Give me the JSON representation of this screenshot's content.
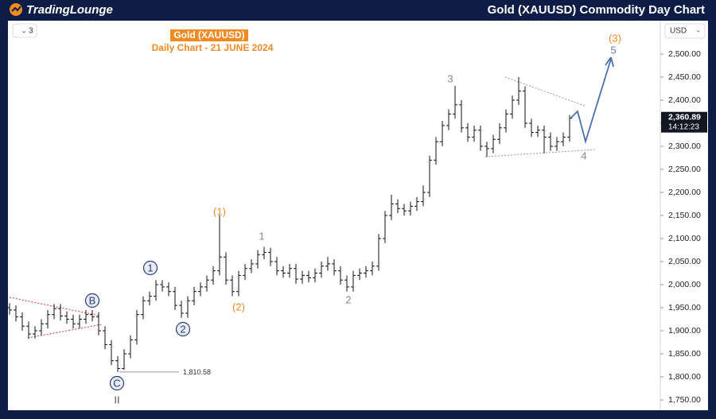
{
  "header": {
    "brand": "TradingLounge",
    "title": "Gold (XAUUSD) Commodity Day Chart"
  },
  "chart_data": {
    "type": "ohlc",
    "title": "Gold (XAUUSD)",
    "subtitle": "Daily Chart - 21 JUNE 2024",
    "currency": "USD",
    "interval": "3",
    "color": "#111111",
    "open": [
      1950,
      1945,
      1930,
      1910,
      1893,
      1900,
      1915,
      1935,
      1948,
      1932,
      1925,
      1915,
      1925,
      1935,
      1930,
      1900,
      1870,
      1835,
      1818,
      1850,
      1880,
      1935,
      1965,
      1975,
      2000,
      1995,
      1985,
      1955,
      1938,
      1965,
      1985,
      1995,
      2010,
      2030,
      2060,
      2010,
      1985,
      2020,
      2035,
      2045,
      2065,
      2070,
      2050,
      2030,
      2025,
      2035,
      2012,
      2020,
      2015,
      2025,
      2040,
      2045,
      2030,
      2010,
      1995,
      2020,
      2025,
      2030,
      2040,
      2100,
      2150,
      2175,
      2165,
      2160,
      2170,
      2180,
      2200,
      2270,
      2310,
      2345,
      2370,
      2390,
      2340,
      2320,
      2335,
      2300,
      2295,
      2315,
      2340,
      2370,
      2400,
      2420,
      2350,
      2330,
      2335,
      2320,
      2300,
      2310,
      2320
    ],
    "high": [
      1960,
      1955,
      1940,
      1920,
      1910,
      1925,
      1945,
      1958,
      1958,
      1942,
      1935,
      1935,
      1945,
      1945,
      1940,
      1910,
      1880,
      1845,
      1860,
      1890,
      1945,
      1975,
      1985,
      2010,
      2010,
      2005,
      1995,
      1965,
      1975,
      1995,
      2005,
      2020,
      2040,
      2150,
      2070,
      2020,
      2030,
      2045,
      2055,
      2075,
      2082,
      2080,
      2060,
      2040,
      2045,
      2045,
      2030,
      2030,
      2035,
      2050,
      2060,
      2055,
      2040,
      2020,
      2030,
      2035,
      2040,
      2050,
      2110,
      2160,
      2195,
      2185,
      2175,
      2180,
      2190,
      2215,
      2280,
      2320,
      2355,
      2380,
      2431,
      2400,
      2350,
      2345,
      2345,
      2310,
      2325,
      2350,
      2380,
      2410,
      2450,
      2430,
      2360,
      2345,
      2345,
      2330,
      2320,
      2330,
      2368
    ],
    "low": [
      1935,
      1920,
      1900,
      1883,
      1883,
      1890,
      1905,
      1925,
      1922,
      1915,
      1905,
      1905,
      1915,
      1920,
      1890,
      1860,
      1825,
      1810.58,
      1815,
      1840,
      1870,
      1925,
      1955,
      1965,
      1985,
      1975,
      1945,
      1928,
      1928,
      1955,
      1975,
      1985,
      2000,
      2020,
      2000,
      1975,
      1975,
      2010,
      2025,
      2035,
      2055,
      2040,
      2020,
      2015,
      2015,
      2002,
      2002,
      2005,
      2005,
      2015,
      2030,
      2020,
      2000,
      1985,
      1985,
      2010,
      2015,
      2020,
      2030,
      2090,
      2140,
      2155,
      2150,
      2150,
      2160,
      2170,
      2190,
      2260,
      2300,
      2335,
      2360,
      2330,
      2310,
      2310,
      2290,
      2277,
      2285,
      2305,
      2330,
      2360,
      2390,
      2340,
      2320,
      2320,
      2285,
      2290,
      2290,
      2300,
      2310
    ],
    "close": [
      1945,
      1930,
      1910,
      1893,
      1900,
      1915,
      1935,
      1948,
      1932,
      1925,
      1915,
      1925,
      1935,
      1930,
      1900,
      1870,
      1835,
      1818,
      1850,
      1880,
      1935,
      1965,
      1975,
      2000,
      1995,
      1985,
      1955,
      1938,
      1965,
      1985,
      1995,
      2010,
      2030,
      2060,
      2010,
      1985,
      2020,
      2035,
      2045,
      2065,
      2070,
      2050,
      2030,
      2025,
      2035,
      2012,
      2020,
      2015,
      2025,
      2040,
      2045,
      2030,
      2010,
      1995,
      2020,
      2025,
      2030,
      2040,
      2100,
      2150,
      2175,
      2165,
      2160,
      2170,
      2180,
      2200,
      2270,
      2310,
      2345,
      2370,
      2390,
      2340,
      2320,
      2335,
      2300,
      2295,
      2315,
      2340,
      2370,
      2400,
      2420,
      2350,
      2330,
      2335,
      2320,
      2300,
      2310,
      2320,
      2360.89
    ],
    "ylim": [
      1729.3,
      2569
    ],
    "yticks": [
      {
        "value": 1750,
        "label": "1,750.00"
      },
      {
        "value": 1800,
        "label": "1,800.00"
      },
      {
        "value": 1850,
        "label": "1,850.00"
      },
      {
        "value": 1900,
        "label": "1,900.00"
      },
      {
        "value": 1950,
        "label": "1,950.00"
      },
      {
        "value": 2000,
        "label": "2,000.00"
      },
      {
        "value": 2050,
        "label": "2,050.00"
      },
      {
        "value": 2100,
        "label": "2,100.00"
      },
      {
        "value": 2150,
        "label": "2,150.00"
      },
      {
        "value": 2200,
        "label": "2,200.00"
      },
      {
        "value": 2250,
        "label": "2,250.00"
      },
      {
        "value": 2300,
        "label": "2,300.00"
      },
      {
        "value": 2350,
        "label": "2,350.00"
      },
      {
        "value": 2400,
        "label": "2,400.00"
      },
      {
        "value": 2450,
        "label": "2,450.00"
      },
      {
        "value": 2500,
        "label": "2,500.00"
      }
    ],
    "last_price": {
      "value": 2360.89,
      "label": "2,360.89"
    },
    "countdown": "14:12:23",
    "low_marker": {
      "value": 1810.58,
      "label": "1,810.58"
    },
    "wave_labels": [
      {
        "text": "(3)",
        "color": "#f08a24"
      },
      {
        "text": "5",
        "color": "#6b7a99"
      },
      {
        "text": "3",
        "color": "#888888"
      },
      {
        "text": "4",
        "color": "#888888"
      },
      {
        "text": "(1)",
        "color": "#f08a24"
      },
      {
        "text": "1",
        "color": "#888888"
      },
      {
        "text": "(2)",
        "color": "#f08a24"
      },
      {
        "text": "2",
        "color": "#888888"
      },
      {
        "text": "1",
        "color": "#2c3e70"
      },
      {
        "text": "2",
        "color": "#2c3e70"
      },
      {
        "text": "B",
        "color": "#2c3e70"
      },
      {
        "text": "C",
        "color": "#2c3e70"
      },
      {
        "text": "II",
        "color": "#555555"
      }
    ]
  }
}
